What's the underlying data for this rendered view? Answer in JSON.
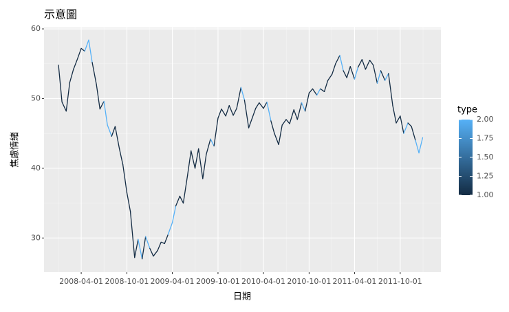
{
  "chart_data": {
    "type": "line",
    "title": "示意圖",
    "x_label": "日期",
    "y_label": "焦慮情緒",
    "legend_title": "type",
    "color_low": "#132B43",
    "color_high": "#56B1F7",
    "color_limits": [
      1,
      2
    ],
    "color_ticks": [
      {
        "value": 1,
        "label": "1.00"
      },
      {
        "value": 1.25,
        "label": "1.25"
      },
      {
        "value": 1.5,
        "label": "1.50"
      },
      {
        "value": 1.75,
        "label": "1.75"
      },
      {
        "value": 2,
        "label": "2.00"
      }
    ],
    "grid": true,
    "xlim": [
      "2007-11-04",
      "2012-03-12"
    ],
    "xticks": [
      "2008-04-01",
      "2008-10-01",
      "2009-04-01",
      "2009-10-01",
      "2010-04-01",
      "2010-10-01",
      "2011-04-01",
      "2011-10-01"
    ],
    "ylim": [
      25.1,
      60.2
    ],
    "yticks": [
      30,
      40,
      50,
      60
    ],
    "x": [
      "2008-01-01",
      "2008-01-15",
      "2008-02-01",
      "2008-02-15",
      "2008-03-01",
      "2008-03-15",
      "2008-04-01",
      "2008-04-15",
      "2008-05-01",
      "2008-05-15",
      "2008-06-01",
      "2008-06-15",
      "2008-07-01",
      "2008-07-15",
      "2008-08-01",
      "2008-08-15",
      "2008-09-01",
      "2008-09-15",
      "2008-10-01",
      "2008-10-15",
      "2008-11-01",
      "2008-11-15",
      "2008-12-01",
      "2008-12-15",
      "2009-01-01",
      "2009-01-15",
      "2009-02-01",
      "2009-02-15",
      "2009-03-01",
      "2009-03-15",
      "2009-04-01",
      "2009-04-15",
      "2009-05-01",
      "2009-05-15",
      "2009-06-01",
      "2009-06-15",
      "2009-07-01",
      "2009-07-15",
      "2009-08-01",
      "2009-08-15",
      "2009-09-01",
      "2009-09-15",
      "2009-10-01",
      "2009-10-15",
      "2009-11-01",
      "2009-11-15",
      "2009-12-01",
      "2009-12-15",
      "2010-01-01",
      "2010-01-15",
      "2010-02-01",
      "2010-02-15",
      "2010-03-01",
      "2010-03-15",
      "2010-04-01",
      "2010-04-15",
      "2010-05-01",
      "2010-05-15",
      "2010-06-01",
      "2010-06-15",
      "2010-07-01",
      "2010-07-15",
      "2010-08-01",
      "2010-08-15",
      "2010-09-01",
      "2010-09-15",
      "2010-10-01",
      "2010-10-15",
      "2010-11-01",
      "2010-11-15",
      "2010-12-01",
      "2010-12-15",
      "2011-01-01",
      "2011-01-15",
      "2011-02-01",
      "2011-02-15",
      "2011-03-01",
      "2011-03-15",
      "2011-04-01",
      "2011-04-15",
      "2011-05-01",
      "2011-05-15",
      "2011-06-01",
      "2011-06-15",
      "2011-07-01",
      "2011-07-15",
      "2011-08-01",
      "2011-08-15",
      "2011-09-01",
      "2011-09-15",
      "2011-10-01",
      "2011-10-15",
      "2011-11-01",
      "2011-11-15",
      "2011-12-01",
      "2011-12-15",
      "2011-12-30"
    ],
    "series": [
      {
        "values": [
          54.8,
          49.5,
          48.2,
          52.3,
          54.2,
          55.5,
          57.2,
          56.8,
          58.4,
          55.2,
          52,
          48.5,
          49.6,
          46.2,
          44.6,
          46,
          42.8,
          40.5,
          36.5,
          33.8,
          27.2,
          29.8,
          27,
          30.2,
          28.5,
          27.4,
          28.2,
          29.4,
          29.2,
          30.5,
          32.2,
          34.6,
          36,
          35,
          39,
          42.5,
          40,
          42.8,
          38.5,
          42,
          44.2,
          43.2,
          47.2,
          48.5,
          47.5,
          49,
          47.6,
          48.6,
          51.6,
          49.8,
          45.8,
          47.2,
          48.6,
          49.4,
          48.6,
          49.5,
          46.8,
          45,
          43.4,
          46.2,
          47,
          46.4,
          48.4,
          47,
          49.4,
          48.2,
          50.8,
          51.4,
          50.5,
          51.4,
          51,
          52.6,
          53.5,
          55,
          56.2,
          54,
          53,
          54.6,
          52.8,
          54.5,
          55.6,
          54.2,
          55.5,
          54.8,
          52.2,
          54,
          52.6,
          53.6,
          49,
          46.5,
          47.5,
          45,
          46.5,
          46,
          44,
          42.2,
          44.4
        ],
        "types": [
          1,
          1,
          1,
          1,
          1,
          1,
          1,
          2,
          2,
          1,
          1,
          1,
          2,
          2,
          1,
          1,
          1,
          1,
          1,
          1,
          1,
          2,
          1,
          2,
          1,
          1,
          1,
          1,
          1,
          2,
          2,
          1,
          1,
          1,
          1,
          1,
          1,
          1,
          1,
          1,
          2,
          1,
          1,
          1,
          1,
          1,
          1,
          1,
          2,
          1,
          1,
          1,
          1,
          1,
          1,
          2,
          1,
          1,
          1,
          1,
          1,
          1,
          1,
          1,
          2,
          1,
          1,
          1,
          2,
          1,
          1,
          1,
          1,
          1,
          2,
          1,
          1,
          1,
          2,
          1,
          1,
          1,
          1,
          1,
          2,
          1,
          2,
          1,
          1,
          1,
          1,
          2,
          1,
          1,
          2,
          2,
          1
        ]
      }
    ]
  }
}
